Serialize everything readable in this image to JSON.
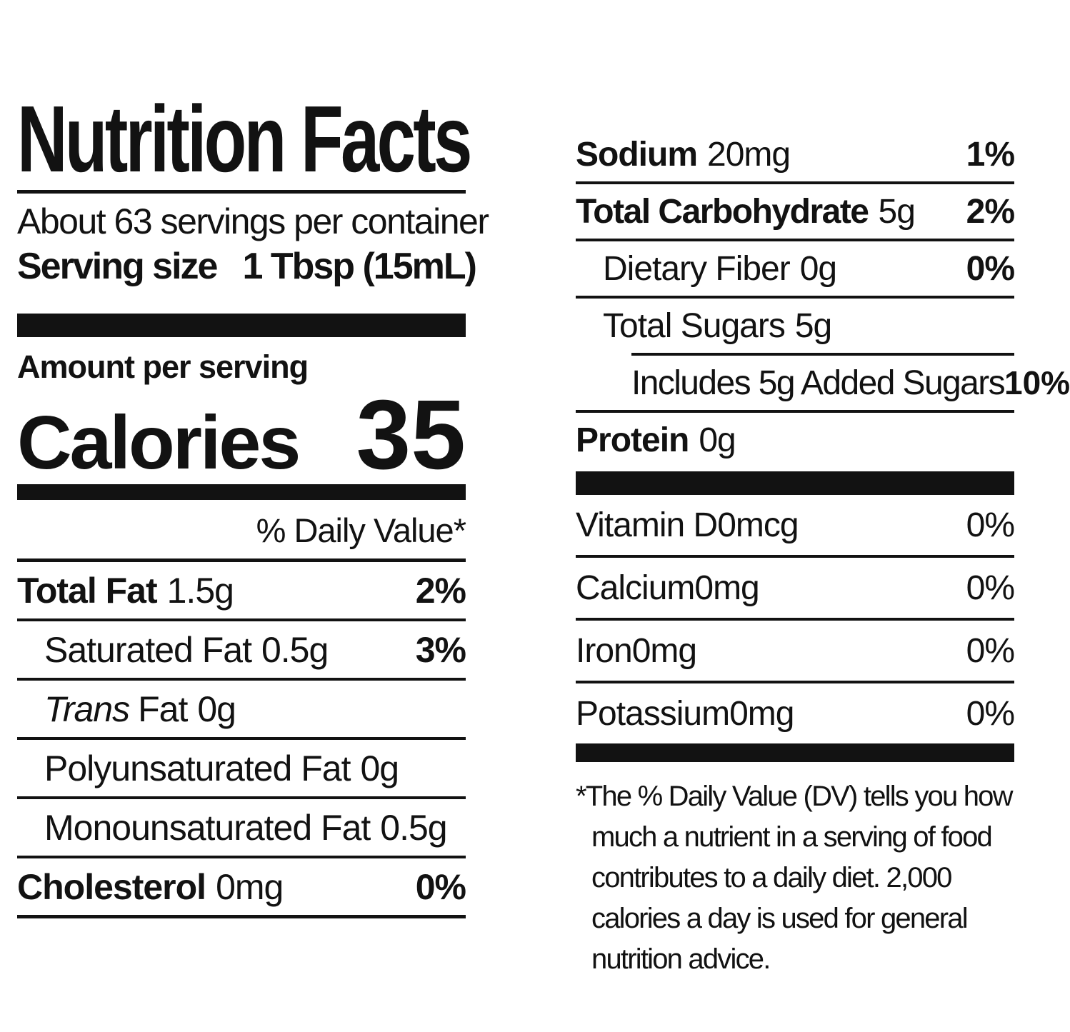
{
  "label": {
    "title": "Nutrition Facts",
    "servings_per_container": "About 63 servings per container",
    "serving_size_label": "Serving size",
    "serving_size_value": "1 Tbsp (15mL)",
    "amount_per_serving": "Amount per serving",
    "calories_label": "Calories",
    "calories_value": "35",
    "daily_value_header": "% Daily Value*",
    "left_rows": [
      {
        "name": "Total Fat",
        "amount": "1.5g",
        "dv": "2%"
      },
      {
        "name": "Saturated Fat",
        "amount": "0.5g",
        "dv": "3%"
      },
      {
        "name": "Trans",
        "rest": "Fat",
        "amount": "0g"
      },
      {
        "name": "Polyunsaturated Fat",
        "amount": "0g"
      },
      {
        "name": "Monounsaturated Fat",
        "amount": "0.5g"
      },
      {
        "name": "Cholesterol",
        "amount": "0mg",
        "dv": "0%"
      }
    ],
    "right_rows": [
      {
        "name": "Sodium",
        "amount": "20mg",
        "dv": "1%"
      },
      {
        "name": "Total Carbohydrate",
        "amount": "5g",
        "dv": "2%"
      },
      {
        "name": "Dietary Fiber",
        "amount": "0g",
        "dv": "0%"
      },
      {
        "name": "Total Sugars",
        "amount": "5g"
      },
      {
        "name": "Includes 5g Added Sugars",
        "dv": "10%"
      },
      {
        "name": "Protein",
        "amount": "0g"
      }
    ],
    "vitamin_rows": [
      {
        "name": "Vitamin D",
        "amount": "0mcg",
        "dv": "0%"
      },
      {
        "name": "Calcium",
        "amount": "0mg",
        "dv": "0%"
      },
      {
        "name": "Iron",
        "amount": "0mg",
        "dv": "0%"
      },
      {
        "name": "Potassium",
        "amount": "0mg",
        "dv": "0%"
      }
    ],
    "footnote_lines": [
      "*The % Daily Value (DV) tells you how",
      "much a nutrient in a serving of food",
      "contributes to a daily diet. 2,000",
      "calories a day is used for general",
      "nutrition advice."
    ]
  },
  "colors": {
    "ink": "#121212",
    "background": "#ffffff"
  }
}
